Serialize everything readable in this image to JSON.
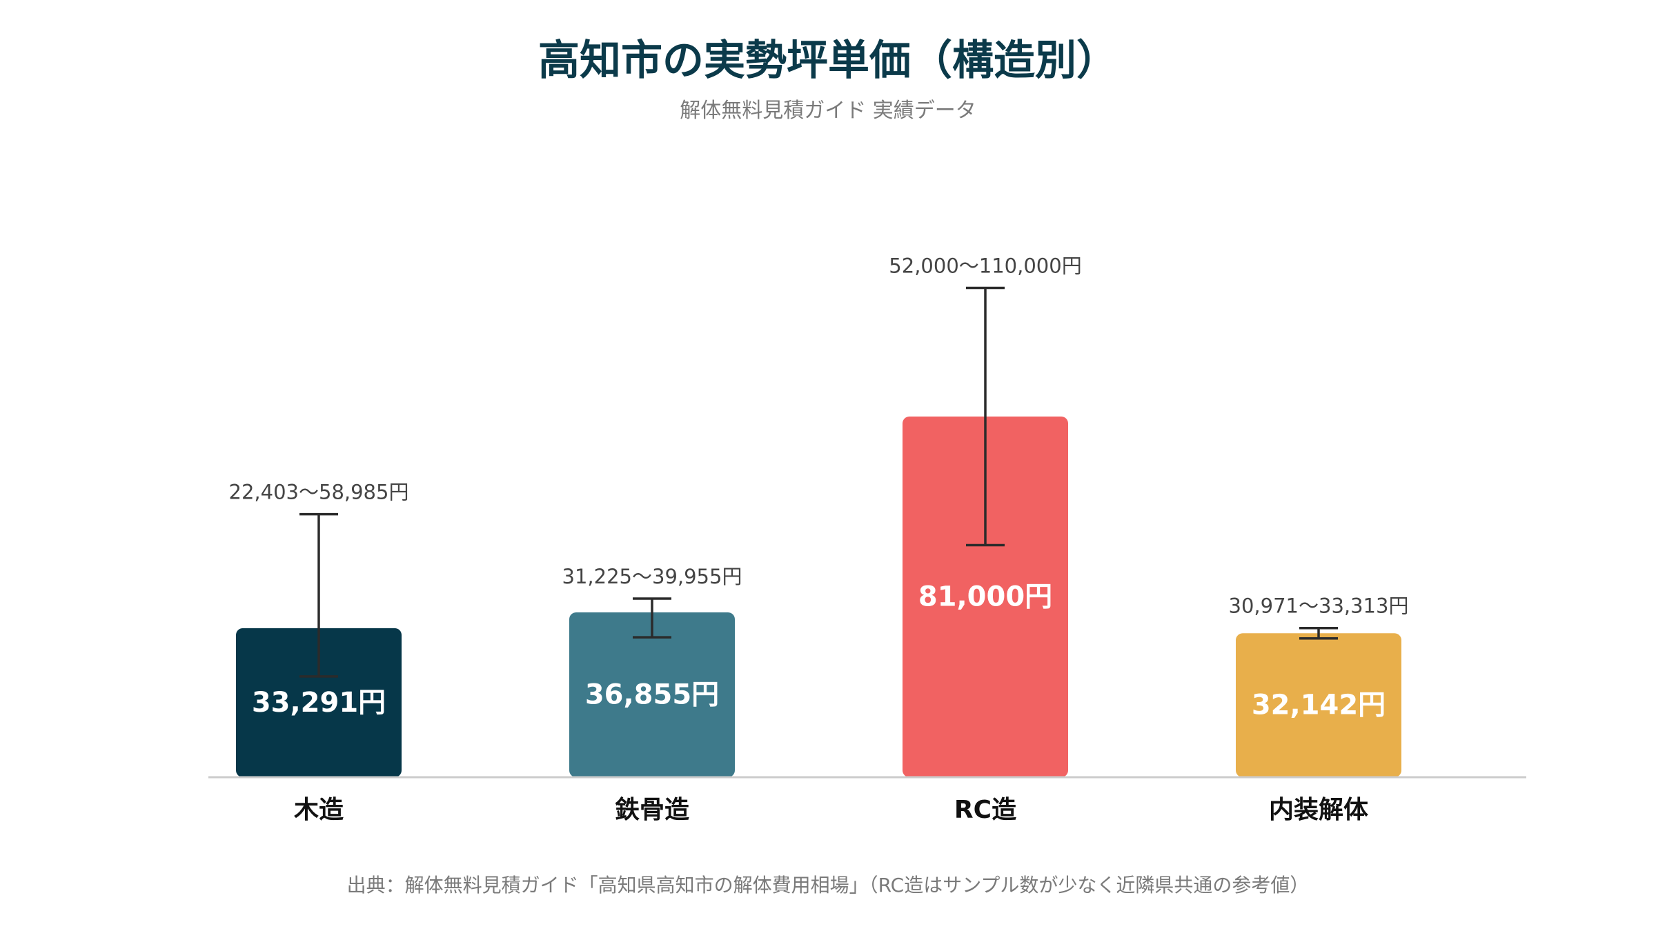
{
  "chart_data": {
    "type": "bar",
    "title": "高知市の実勢坪単価（構造別）",
    "subtitle": "解体無料見積ガイド 実績データ",
    "categories": [
      "木造",
      "鉄骨造",
      "RC造",
      "内装解体"
    ],
    "values": [
      33291,
      36855,
      81000,
      32142
    ],
    "value_labels": [
      "33,291円",
      "36,855円",
      "81,000円",
      "32,142円"
    ],
    "ranges": [
      [
        22403,
        58985
      ],
      [
        31225,
        39955
      ],
      [
        52000,
        110000
      ],
      [
        30971,
        33313
      ]
    ],
    "range_labels": [
      "22,403〜58,985円",
      "31,225〜39,955円",
      "52,000〜110,000円",
      "30,971〜33,313円"
    ],
    "colors": [
      "#063749",
      "#3e7a8b",
      "#f16262",
      "#e8af4b"
    ],
    "ylim": [
      0,
      130000
    ],
    "grid": false,
    "legend": "none",
    "xlabel": "",
    "ylabel": "",
    "source_note": "出典：解体無料見積ガイド「高知県高知市の解体費用相場」（RC造はサンプル数が少なく近隣県共通の参考値）"
  }
}
